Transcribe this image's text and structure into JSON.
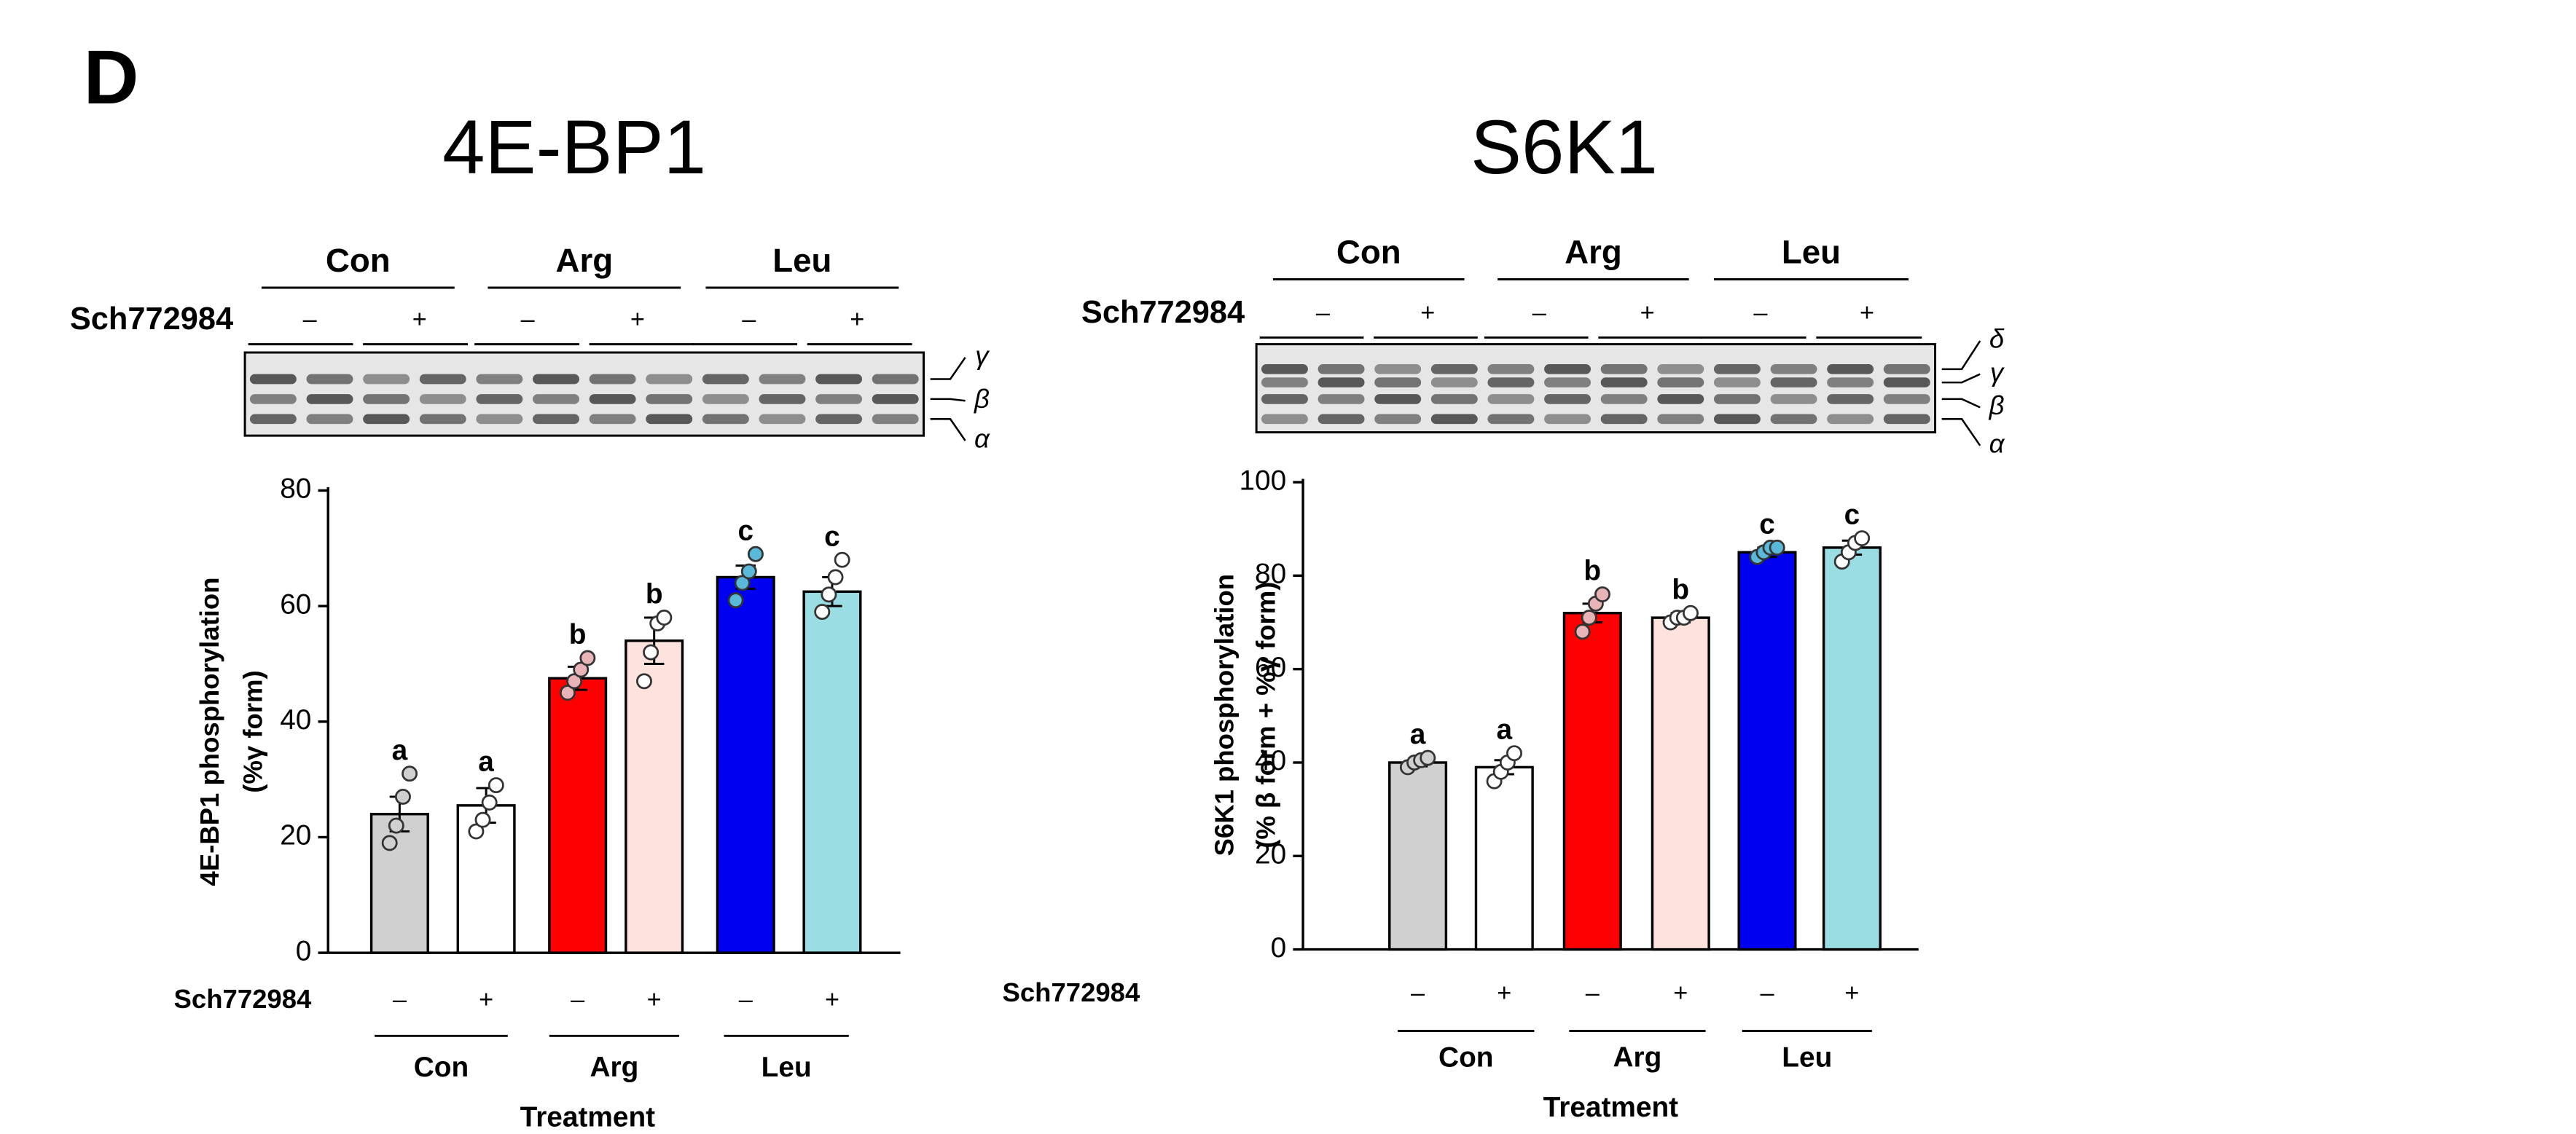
{
  "panel": "D",
  "chart_data": [
    {
      "type": "bar",
      "title": "4E-BP1",
      "ylabel": [
        "4E-BP1 phosphorylation",
        "(%γ form)"
      ],
      "xlabel": "Treatment",
      "treatment_label": "Sch772984",
      "categories": [
        "–",
        "+",
        "–",
        "+",
        "–",
        "+"
      ],
      "groups": [
        "Con",
        "Arg",
        "Leu"
      ],
      "values": [
        24,
        25.5,
        47.5,
        54,
        65,
        62.5
      ],
      "errors": [
        3,
        3,
        2,
        4,
        2,
        2.5
      ],
      "letters": [
        "a",
        "a",
        "b",
        "b",
        "c",
        "c"
      ],
      "points": [
        [
          19,
          22,
          27,
          31
        ],
        [
          21,
          23,
          26,
          29
        ],
        [
          45,
          47,
          49,
          51
        ],
        [
          47,
          52,
          57,
          58
        ],
        [
          61,
          64,
          66,
          69
        ],
        [
          59,
          62,
          65,
          68
        ]
      ],
      "colors": [
        "#d0d0d0",
        "#ffffff",
        "#ff0000",
        "#fde2de",
        "#0000f0",
        "#9adde3"
      ],
      "point_colors": [
        "#d0d0d0",
        "#ffffff",
        "#e8b4b8",
        "#ffffff",
        "#5ab8d8",
        "#ffffff"
      ],
      "ylim": [
        0,
        80
      ],
      "yticks": [
        0,
        20,
        40,
        60,
        80
      ],
      "bands": [
        "γ",
        "β",
        "α"
      ]
    },
    {
      "type": "bar",
      "title": "S6K1",
      "ylabel": [
        "S6K1 phosphorylation",
        "(% β form + %γ form)"
      ],
      "xlabel": "Treatment",
      "treatment_label": "Sch772984",
      "categories": [
        "–",
        "+",
        "–",
        "+",
        "–",
        "+"
      ],
      "groups": [
        "Con",
        "Arg",
        "Leu"
      ],
      "values": [
        40,
        39,
        72,
        71,
        85,
        86
      ],
      "errors": [
        0.8,
        1.5,
        2,
        1,
        1,
        1.5
      ],
      "letters": [
        "a",
        "a",
        "b",
        "b",
        "c",
        "c"
      ],
      "points": [
        [
          39,
          40,
          40.5,
          41
        ],
        [
          36,
          38,
          40,
          42
        ],
        [
          68,
          71,
          74,
          76
        ],
        [
          70,
          71,
          71,
          72
        ],
        [
          84,
          85,
          86,
          86
        ],
        [
          83,
          85,
          87,
          88
        ]
      ],
      "colors": [
        "#d0d0d0",
        "#ffffff",
        "#ff0000",
        "#fde2de",
        "#0000f0",
        "#9adde3"
      ],
      "point_colors": [
        "#d0d0d0",
        "#ffffff",
        "#e8b4b8",
        "#ffffff",
        "#5ab8d8",
        "#ffffff"
      ],
      "ylim": [
        0,
        100
      ],
      "yticks": [
        0,
        20,
        40,
        60,
        80,
        100
      ],
      "bands": [
        "δ",
        "γ",
        "β",
        "α"
      ]
    }
  ]
}
